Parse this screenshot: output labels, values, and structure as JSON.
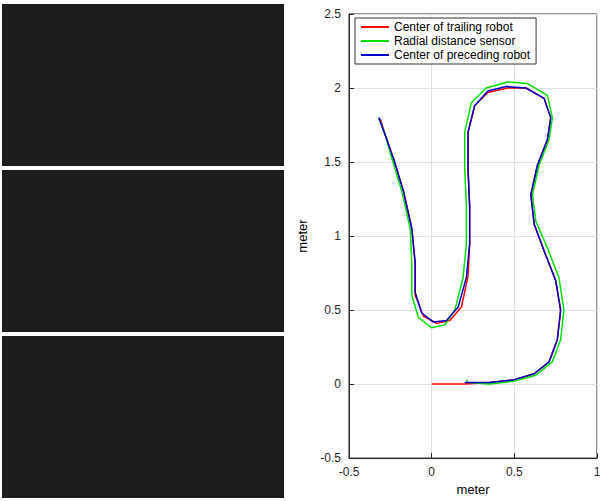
{
  "chart_data": {
    "type": "line",
    "x_label": "meter",
    "y_label": "meter",
    "xlim": [
      -0.5,
      1
    ],
    "xticks": [
      -0.5,
      0,
      0.5,
      1
    ],
    "ylim": [
      -0.5,
      2.5
    ],
    "yticks": [
      -0.5,
      0,
      0.5,
      1,
      1.5,
      2,
      2.5
    ],
    "grid": true,
    "legend": "upper left",
    "series": [
      {
        "name": "Center of trailing robot",
        "color": "#ff0000",
        "x": [
          0,
          0.1,
          0.2,
          0.35,
          0.5,
          0.62,
          0.71,
          0.76,
          0.78,
          0.75,
          0.68,
          0.62,
          0.6,
          0.64,
          0.7,
          0.72,
          0.68,
          0.57,
          0.46,
          0.34,
          0.26,
          0.22,
          0.22,
          0.23,
          0.23,
          0.22,
          0.18,
          0.11,
          0.03,
          -0.05,
          -0.1,
          -0.1,
          -0.12,
          -0.17,
          -0.23,
          -0.28,
          -0.31
        ],
        "values": [
          0,
          0,
          0,
          0.01,
          0.03,
          0.07,
          0.15,
          0.3,
          0.5,
          0.7,
          0.9,
          1.08,
          1.28,
          1.48,
          1.65,
          1.8,
          1.93,
          2.0,
          2.0,
          1.97,
          1.88,
          1.7,
          1.45,
          1.2,
          0.95,
          0.73,
          0.52,
          0.43,
          0.41,
          0.46,
          0.6,
          0.82,
          1.05,
          1.3,
          1.52,
          1.68,
          1.79
        ]
      },
      {
        "name": "Radial distance sensor",
        "color": "#00e000",
        "x": [
          0.21,
          0.22,
          0.35,
          0.5,
          0.63,
          0.73,
          0.78,
          0.8,
          0.77,
          0.7,
          0.63,
          0.61,
          0.65,
          0.71,
          0.73,
          0.7,
          0.58,
          0.46,
          0.33,
          0.24,
          0.2,
          0.2,
          0.21,
          0.21,
          0.19,
          0.14,
          0.08,
          0.0,
          -0.08,
          -0.12,
          -0.12,
          -0.13,
          -0.18,
          -0.24,
          -0.28,
          -0.32
        ],
        "values": [
          0.03,
          0.01,
          0.0,
          0.02,
          0.06,
          0.15,
          0.3,
          0.5,
          0.72,
          0.92,
          1.1,
          1.28,
          1.48,
          1.65,
          1.8,
          1.95,
          2.03,
          2.04,
          2.0,
          1.9,
          1.7,
          1.45,
          1.2,
          0.95,
          0.72,
          0.5,
          0.4,
          0.38,
          0.45,
          0.6,
          0.82,
          1.05,
          1.3,
          1.52,
          1.68,
          1.8
        ]
      },
      {
        "name": "Center of preceding robot",
        "color": "#0000c8",
        "x": [
          0.2,
          0.35,
          0.5,
          0.62,
          0.71,
          0.76,
          0.78,
          0.75,
          0.68,
          0.62,
          0.6,
          0.64,
          0.7,
          0.72,
          0.68,
          0.57,
          0.45,
          0.34,
          0.26,
          0.22,
          0.22,
          0.23,
          0.23,
          0.21,
          0.16,
          0.09,
          0.01,
          -0.06,
          -0.1,
          -0.1,
          -0.12,
          -0.17,
          -0.23,
          -0.28,
          -0.32
        ],
        "values": [
          0.01,
          0.01,
          0.03,
          0.07,
          0.15,
          0.3,
          0.5,
          0.7,
          0.9,
          1.08,
          1.28,
          1.48,
          1.65,
          1.8,
          1.93,
          2.0,
          2.01,
          1.98,
          1.88,
          1.7,
          1.45,
          1.2,
          0.95,
          0.72,
          0.52,
          0.43,
          0.42,
          0.48,
          0.62,
          0.82,
          1.05,
          1.3,
          1.52,
          1.68,
          1.8
        ]
      }
    ]
  }
}
